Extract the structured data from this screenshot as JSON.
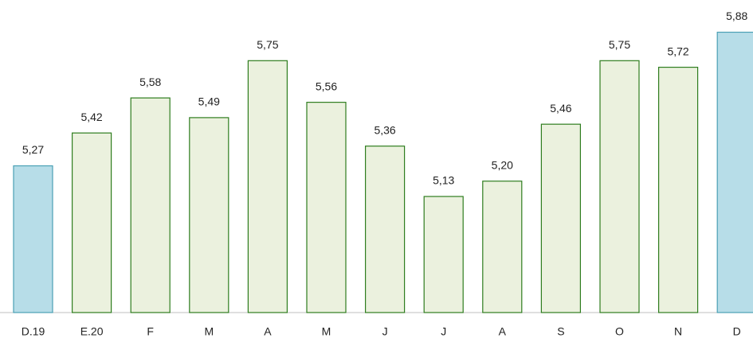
{
  "chart_data": {
    "type": "bar",
    "categories": [
      "D.19",
      "E.20",
      "F",
      "M",
      "A",
      "M",
      "J",
      "J",
      "A",
      "S",
      "O",
      "N",
      "D"
    ],
    "values": [
      5.27,
      5.42,
      5.58,
      5.49,
      5.75,
      5.56,
      5.36,
      5.13,
      5.2,
      5.46,
      5.75,
      5.72,
      5.88
    ],
    "value_labels": [
      "5,27",
      "5,42",
      "5,58",
      "5,49",
      "5,75",
      "5,56",
      "5,36",
      "5,13",
      "5,20",
      "5,46",
      "5,75",
      "5,72",
      "5,88"
    ],
    "colors": [
      "#b7dde8",
      "#ebf1de",
      "#ebf1de",
      "#ebf1de",
      "#ebf1de",
      "#ebf1de",
      "#ebf1de",
      "#ebf1de",
      "#ebf1de",
      "#ebf1de",
      "#ebf1de",
      "#ebf1de",
      "#b7dde8"
    ],
    "ylim": [
      4.6,
      5.9
    ]
  }
}
